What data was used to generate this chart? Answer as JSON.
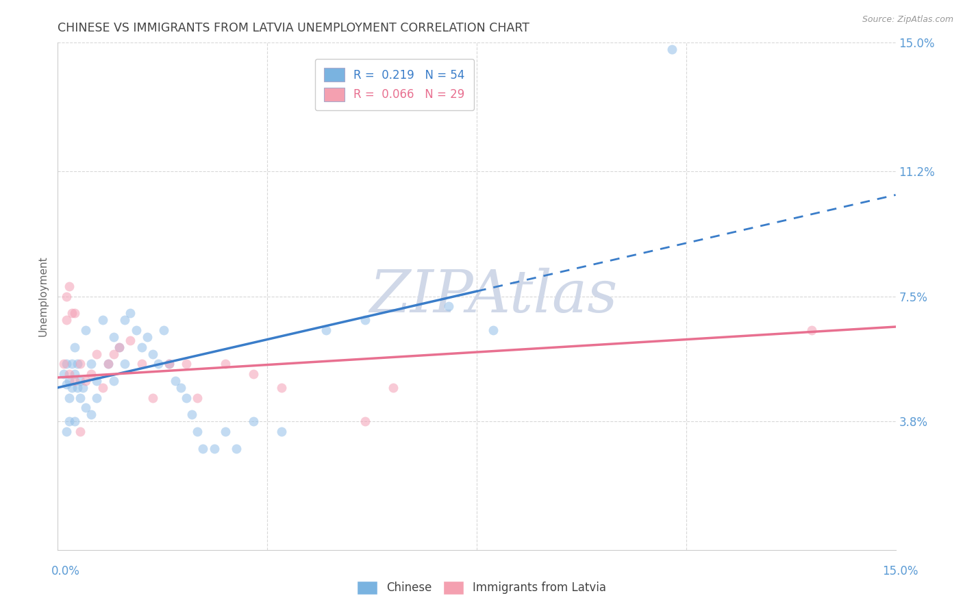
{
  "title": "CHINESE VS IMMIGRANTS FROM LATVIA UNEMPLOYMENT CORRELATION CHART",
  "source": "Source: ZipAtlas.com",
  "ylabel": "Unemployment",
  "ytick_vals": [
    3.8,
    7.5,
    11.2,
    15.0
  ],
  "xmin": 0.0,
  "xmax": 15.0,
  "ymin": 0.0,
  "ymax": 15.0,
  "legend_color_1": "#7ab3e0",
  "legend_color_2": "#f4a0b0",
  "scatter_color_blue": "#92bfe8",
  "scatter_color_pink": "#f4a0b5",
  "trendline_color_blue": "#3a7dc9",
  "trendline_color_pink": "#e87090",
  "watermark_text": "ZIPAtlas",
  "watermark_color": "#d0d8e8",
  "axis_label_color": "#5b9bd5",
  "title_color": "#444444",
  "source_color": "#999999",
  "background_color": "#ffffff",
  "grid_color": "#d8d8d8",
  "chinese_x": [
    0.1,
    0.15,
    0.15,
    0.2,
    0.2,
    0.25,
    0.25,
    0.3,
    0.3,
    0.35,
    0.35,
    0.4,
    0.4,
    0.45,
    0.5,
    0.5,
    0.6,
    0.6,
    0.7,
    0.7,
    0.8,
    0.9,
    1.0,
    1.0,
    1.1,
    1.2,
    1.2,
    1.3,
    1.4,
    1.5,
    1.6,
    1.7,
    1.8,
    1.9,
    2.0,
    2.1,
    2.2,
    2.3,
    2.4,
    2.5,
    2.6,
    2.8,
    3.0,
    3.2,
    3.5,
    4.0,
    4.8,
    5.5,
    7.0,
    7.8,
    0.15,
    0.2,
    0.3,
    11.0
  ],
  "chinese_y": [
    5.2,
    4.9,
    5.5,
    5.0,
    4.5,
    5.5,
    4.8,
    6.0,
    5.2,
    5.5,
    4.8,
    5.0,
    4.5,
    4.8,
    6.5,
    4.2,
    5.5,
    4.0,
    5.0,
    4.5,
    6.8,
    5.5,
    6.3,
    5.0,
    6.0,
    5.5,
    6.8,
    7.0,
    6.5,
    6.0,
    6.3,
    5.8,
    5.5,
    6.5,
    5.5,
    5.0,
    4.8,
    4.5,
    4.0,
    3.5,
    3.0,
    3.0,
    3.5,
    3.0,
    3.8,
    3.5,
    6.5,
    6.8,
    7.2,
    6.5,
    3.5,
    3.8,
    3.8,
    14.8
  ],
  "latvia_x": [
    0.1,
    0.15,
    0.15,
    0.2,
    0.2,
    0.25,
    0.3,
    0.3,
    0.4,
    0.5,
    0.6,
    0.7,
    0.8,
    0.9,
    1.0,
    1.1,
    1.3,
    1.5,
    1.7,
    2.0,
    2.3,
    2.5,
    3.0,
    3.5,
    4.0,
    5.5,
    6.0,
    13.5,
    0.4
  ],
  "latvia_y": [
    5.5,
    6.8,
    7.5,
    7.8,
    5.2,
    7.0,
    7.0,
    5.0,
    5.5,
    5.0,
    5.2,
    5.8,
    4.8,
    5.5,
    5.8,
    6.0,
    6.2,
    5.5,
    4.5,
    5.5,
    5.5,
    4.5,
    5.5,
    5.2,
    4.8,
    3.8,
    4.8,
    6.5,
    3.5
  ],
  "trendline_blue_x0": 0.0,
  "trendline_blue_y0": 4.8,
  "trendline_blue_x1": 15.0,
  "trendline_blue_y1": 10.5,
  "trendline_blue_solid_end": 7.5,
  "trendline_pink_x0": 0.0,
  "trendline_pink_y0": 5.1,
  "trendline_pink_x1": 15.0,
  "trendline_pink_y1": 6.6,
  "scatter_size": 100,
  "scatter_alpha": 0.55
}
